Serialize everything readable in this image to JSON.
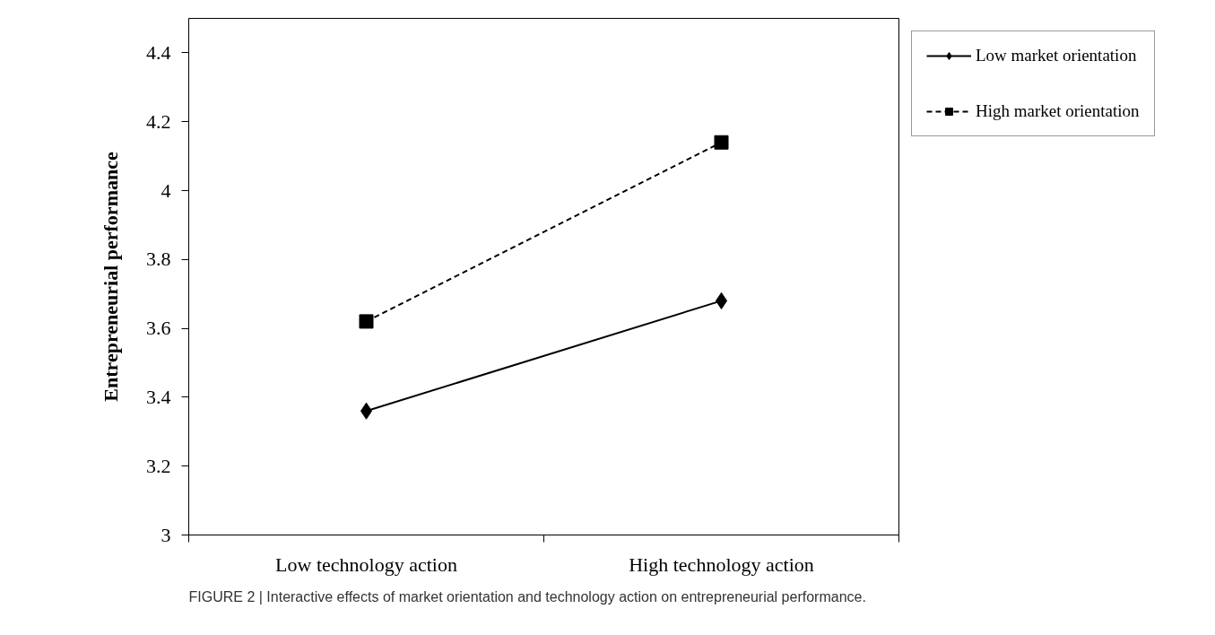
{
  "chart_data": {
    "type": "line",
    "ylabel": "Entrepreneurial performance",
    "categories": [
      "Low technology action",
      "High technology action"
    ],
    "series": [
      {
        "name": "Low market orientation",
        "color": "#000000",
        "values": [
          3.36,
          3.68
        ],
        "marker": "diamond",
        "line_style": "solid"
      },
      {
        "name": "High market orientation",
        "color": "#000000",
        "values": [
          3.62,
          4.14
        ],
        "marker": "square",
        "line_style": "dashed"
      }
    ],
    "ylim": [
      3,
      4.5
    ],
    "yticks": [
      3,
      3.2,
      3.4,
      3.6,
      3.8,
      4,
      4.2,
      4.4
    ],
    "grid": false,
    "legend": "right",
    "annotations": [
      "FIGURE 2 | Interactive effects of market orientation and technology action on entrepreneurial performance."
    ]
  }
}
